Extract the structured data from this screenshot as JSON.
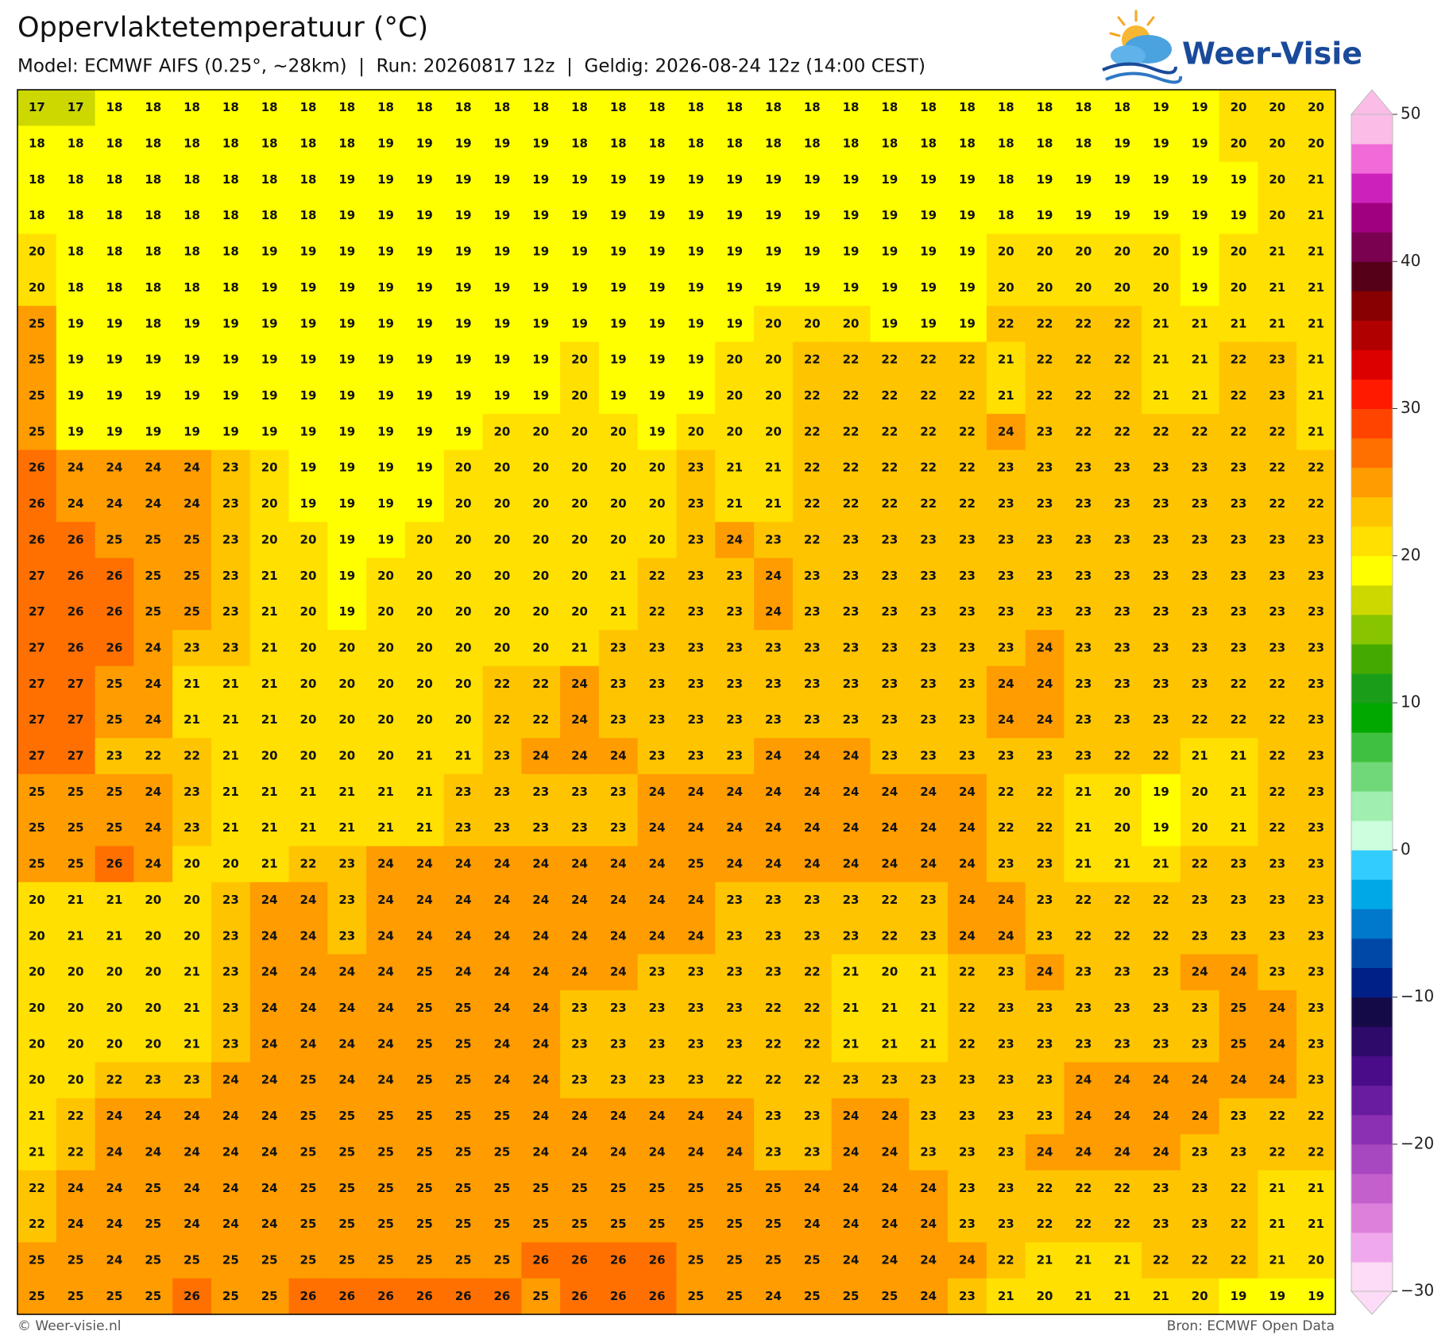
{
  "header": {
    "title": "Oppervlaktetemperatuur (°C)",
    "subtitle": "Model: ECMWF AIFS (0.25°, ~28km)  |  Run: 20260817 12z  |  Geldig: 2026-08-24 12z (14:00 CEST)"
  },
  "logo": "Weer-Visie",
  "grid": {
    "rows": [
      [
        17,
        17,
        18,
        18,
        18,
        18,
        18,
        18,
        18,
        18,
        18,
        18,
        18,
        18,
        18,
        18,
        18,
        18,
        18,
        18,
        18,
        18,
        18,
        18,
        18,
        18,
        18,
        18,
        18,
        19,
        19,
        20,
        20,
        20
      ],
      [
        18,
        18,
        18,
        18,
        18,
        18,
        18,
        18,
        18,
        19,
        19,
        19,
        19,
        19,
        18,
        18,
        18,
        18,
        18,
        18,
        18,
        18,
        18,
        18,
        18,
        18,
        18,
        18,
        19,
        19,
        19,
        20,
        20,
        20
      ],
      [
        18,
        18,
        18,
        18,
        18,
        18,
        18,
        18,
        19,
        19,
        19,
        19,
        19,
        19,
        19,
        19,
        19,
        19,
        19,
        19,
        19,
        19,
        19,
        19,
        19,
        18,
        19,
        19,
        19,
        19,
        19,
        19,
        20,
        21
      ],
      [
        18,
        18,
        18,
        18,
        18,
        18,
        18,
        18,
        19,
        19,
        19,
        19,
        19,
        19,
        19,
        19,
        19,
        19,
        19,
        19,
        19,
        19,
        19,
        19,
        19,
        18,
        19,
        19,
        19,
        19,
        19,
        19,
        20,
        21
      ],
      [
        20,
        18,
        18,
        18,
        18,
        18,
        19,
        19,
        19,
        19,
        19,
        19,
        19,
        19,
        19,
        19,
        19,
        19,
        19,
        19,
        19,
        19,
        19,
        19,
        19,
        20,
        20,
        20,
        20,
        20,
        19,
        20,
        21,
        21
      ],
      [
        20,
        18,
        18,
        18,
        18,
        18,
        19,
        19,
        19,
        19,
        19,
        19,
        19,
        19,
        19,
        19,
        19,
        19,
        19,
        19,
        19,
        19,
        19,
        19,
        19,
        20,
        20,
        20,
        20,
        20,
        19,
        20,
        21,
        21
      ],
      [
        25,
        19,
        19,
        18,
        19,
        19,
        19,
        19,
        19,
        19,
        19,
        19,
        19,
        19,
        19,
        19,
        19,
        19,
        19,
        20,
        20,
        20,
        19,
        19,
        19,
        22,
        22,
        22,
        22,
        21,
        21,
        21,
        21,
        21
      ],
      [
        25,
        19,
        19,
        19,
        19,
        19,
        19,
        19,
        19,
        19,
        19,
        19,
        19,
        19,
        20,
        19,
        19,
        19,
        20,
        20,
        22,
        22,
        22,
        22,
        22,
        21,
        22,
        22,
        22,
        21,
        21,
        22,
        23,
        21
      ],
      [
        25,
        19,
        19,
        19,
        19,
        19,
        19,
        19,
        19,
        19,
        19,
        19,
        19,
        19,
        20,
        19,
        19,
        19,
        20,
        20,
        22,
        22,
        22,
        22,
        22,
        21,
        22,
        22,
        22,
        21,
        21,
        22,
        23,
        21
      ],
      [
        25,
        19,
        19,
        19,
        19,
        19,
        19,
        19,
        19,
        19,
        19,
        19,
        20,
        20,
        20,
        20,
        19,
        20,
        20,
        20,
        22,
        22,
        22,
        22,
        22,
        24,
        23,
        22,
        22,
        22,
        22,
        22,
        22,
        21
      ],
      [
        26,
        24,
        24,
        24,
        24,
        23,
        20,
        19,
        19,
        19,
        19,
        20,
        20,
        20,
        20,
        20,
        20,
        23,
        21,
        21,
        22,
        22,
        22,
        22,
        22,
        23,
        23,
        23,
        23,
        23,
        23,
        23,
        22,
        22
      ],
      [
        26,
        24,
        24,
        24,
        24,
        23,
        20,
        19,
        19,
        19,
        19,
        20,
        20,
        20,
        20,
        20,
        20,
        23,
        21,
        21,
        22,
        22,
        22,
        22,
        22,
        23,
        23,
        23,
        23,
        23,
        23,
        23,
        22,
        22
      ],
      [
        26,
        26,
        25,
        25,
        25,
        23,
        20,
        20,
        19,
        19,
        20,
        20,
        20,
        20,
        20,
        20,
        20,
        23,
        24,
        23,
        22,
        23,
        23,
        23,
        23,
        23,
        23,
        23,
        23,
        23,
        23,
        23,
        23,
        23
      ],
      [
        27,
        26,
        26,
        25,
        25,
        23,
        21,
        20,
        19,
        20,
        20,
        20,
        20,
        20,
        20,
        21,
        22,
        23,
        23,
        24,
        23,
        23,
        23,
        23,
        23,
        23,
        23,
        23,
        23,
        23,
        23,
        23,
        23,
        23
      ],
      [
        27,
        26,
        26,
        25,
        25,
        23,
        21,
        20,
        19,
        20,
        20,
        20,
        20,
        20,
        20,
        21,
        22,
        23,
        23,
        24,
        23,
        23,
        23,
        23,
        23,
        23,
        23,
        23,
        23,
        23,
        23,
        23,
        23,
        23
      ],
      [
        27,
        26,
        26,
        24,
        23,
        23,
        21,
        20,
        20,
        20,
        20,
        20,
        20,
        20,
        21,
        23,
        23,
        23,
        23,
        23,
        23,
        23,
        23,
        23,
        23,
        23,
        24,
        23,
        23,
        23,
        23,
        23,
        23,
        23
      ],
      [
        27,
        27,
        25,
        24,
        21,
        21,
        21,
        20,
        20,
        20,
        20,
        20,
        22,
        22,
        24,
        23,
        23,
        23,
        23,
        23,
        23,
        23,
        23,
        23,
        23,
        24,
        24,
        23,
        23,
        23,
        23,
        22,
        22,
        23
      ],
      [
        27,
        27,
        25,
        24,
        21,
        21,
        21,
        20,
        20,
        20,
        20,
        20,
        22,
        22,
        24,
        23,
        23,
        23,
        23,
        23,
        23,
        23,
        23,
        23,
        23,
        24,
        24,
        23,
        23,
        23,
        22,
        22,
        22,
        23
      ],
      [
        27,
        27,
        23,
        22,
        22,
        21,
        20,
        20,
        20,
        20,
        21,
        21,
        23,
        24,
        24,
        24,
        23,
        23,
        23,
        24,
        24,
        24,
        23,
        23,
        23,
        23,
        23,
        23,
        22,
        22,
        21,
        21,
        22,
        23
      ],
      [
        25,
        25,
        25,
        24,
        23,
        21,
        21,
        21,
        21,
        21,
        21,
        23,
        23,
        23,
        23,
        23,
        24,
        24,
        24,
        24,
        24,
        24,
        24,
        24,
        24,
        22,
        22,
        21,
        20,
        19,
        20,
        21,
        22,
        23
      ],
      [
        25,
        25,
        25,
        24,
        23,
        21,
        21,
        21,
        21,
        21,
        21,
        23,
        23,
        23,
        23,
        23,
        24,
        24,
        24,
        24,
        24,
        24,
        24,
        24,
        24,
        22,
        22,
        21,
        20,
        19,
        20,
        21,
        22,
        23
      ],
      [
        25,
        25,
        26,
        24,
        20,
        20,
        21,
        22,
        23,
        24,
        24,
        24,
        24,
        24,
        24,
        24,
        24,
        25,
        24,
        24,
        24,
        24,
        24,
        24,
        24,
        23,
        23,
        21,
        21,
        21,
        22,
        23,
        23,
        23
      ],
      [
        20,
        21,
        21,
        20,
        20,
        23,
        24,
        24,
        23,
        24,
        24,
        24,
        24,
        24,
        24,
        24,
        24,
        24,
        23,
        23,
        23,
        23,
        22,
        23,
        24,
        24,
        23,
        22,
        22,
        22,
        23,
        23,
        23,
        23
      ],
      [
        20,
        21,
        21,
        20,
        20,
        23,
        24,
        24,
        23,
        24,
        24,
        24,
        24,
        24,
        24,
        24,
        24,
        24,
        23,
        23,
        23,
        23,
        22,
        23,
        24,
        24,
        23,
        22,
        22,
        22,
        23,
        23,
        23,
        23
      ],
      [
        20,
        20,
        20,
        20,
        21,
        23,
        24,
        24,
        24,
        24,
        25,
        24,
        24,
        24,
        24,
        24,
        23,
        23,
        23,
        23,
        22,
        21,
        20,
        21,
        22,
        23,
        24,
        23,
        23,
        23,
        24,
        24,
        23,
        23
      ],
      [
        20,
        20,
        20,
        20,
        21,
        23,
        24,
        24,
        24,
        24,
        25,
        25,
        24,
        24,
        23,
        23,
        23,
        23,
        23,
        22,
        22,
        21,
        21,
        21,
        22,
        23,
        23,
        23,
        23,
        23,
        23,
        25,
        24,
        23
      ],
      [
        20,
        20,
        20,
        20,
        21,
        23,
        24,
        24,
        24,
        24,
        25,
        25,
        24,
        24,
        23,
        23,
        23,
        23,
        23,
        22,
        22,
        21,
        21,
        21,
        22,
        23,
        23,
        23,
        23,
        23,
        23,
        25,
        24,
        23
      ],
      [
        20,
        20,
        22,
        23,
        23,
        24,
        24,
        25,
        24,
        24,
        25,
        25,
        24,
        24,
        23,
        23,
        23,
        23,
        22,
        22,
        22,
        23,
        23,
        23,
        23,
        23,
        23,
        24,
        24,
        24,
        24,
        24,
        24,
        23
      ],
      [
        21,
        22,
        24,
        24,
        24,
        24,
        24,
        25,
        25,
        25,
        25,
        25,
        25,
        24,
        24,
        24,
        24,
        24,
        24,
        23,
        23,
        24,
        24,
        23,
        23,
        23,
        23,
        24,
        24,
        24,
        24,
        23,
        22,
        22
      ],
      [
        21,
        22,
        24,
        24,
        24,
        24,
        24,
        25,
        25,
        25,
        25,
        25,
        25,
        24,
        24,
        24,
        24,
        24,
        24,
        23,
        23,
        24,
        24,
        23,
        23,
        23,
        24,
        24,
        24,
        24,
        23,
        23,
        22,
        22
      ],
      [
        22,
        24,
        24,
        25,
        24,
        24,
        24,
        25,
        25,
        25,
        25,
        25,
        25,
        25,
        25,
        25,
        25,
        25,
        25,
        25,
        24,
        24,
        24,
        24,
        23,
        23,
        22,
        22,
        22,
        23,
        23,
        22,
        21,
        21
      ],
      [
        22,
        24,
        24,
        25,
        24,
        24,
        24,
        25,
        25,
        25,
        25,
        25,
        25,
        25,
        25,
        25,
        25,
        25,
        25,
        25,
        24,
        24,
        24,
        24,
        23,
        23,
        22,
        22,
        22,
        23,
        23,
        22,
        21,
        21
      ],
      [
        25,
        25,
        24,
        25,
        25,
        25,
        25,
        25,
        25,
        25,
        25,
        25,
        25,
        26,
        26,
        26,
        26,
        25,
        25,
        25,
        25,
        24,
        24,
        24,
        24,
        22,
        21,
        21,
        21,
        22,
        22,
        22,
        21,
        20
      ],
      [
        25,
        25,
        25,
        25,
        26,
        25,
        25,
        26,
        26,
        26,
        26,
        26,
        26,
        25,
        26,
        26,
        26,
        25,
        25,
        24,
        25,
        25,
        25,
        24,
        23,
        21,
        20,
        21,
        21,
        21,
        20,
        19,
        19,
        19
      ]
    ]
  },
  "colorbar": {
    "lim": [
      -30,
      50
    ],
    "ticks": [
      50,
      40,
      30,
      20,
      10,
      0,
      {
        "value": -10,
        "label": "−10"
      },
      {
        "value": -20,
        "label": "−20"
      },
      {
        "value": -30,
        "label": "−30"
      }
    ],
    "colors": [
      "#fcdcf6",
      "#f0a8ec",
      "#dc80dc",
      "#c460cc",
      "#a848c0",
      "#8a30b0",
      "#6a1ca0",
      "#4a0c88",
      "#2e0a6a",
      "#150a48",
      "#002088",
      "#0048a8",
      "#0078cc",
      "#00a8e8",
      "#33ccff",
      "#ccffdd",
      "#a0eeb0",
      "#70d878",
      "#40c040",
      "#00a800",
      "#1a9e1a",
      "#44aa00",
      "#88c400",
      "#ccd800",
      "#ffff00",
      "#ffe000",
      "#ffc400",
      "#ff9c00",
      "#ff7000",
      "#ff4400",
      "#ff1a00",
      "#dd0000",
      "#b00000",
      "#880000",
      "#550018",
      "#7a0050",
      "#a00080",
      "#cc22bb",
      "#f06ad8",
      "#fbbde8"
    ]
  },
  "footer": {
    "left": "© Weer-visie.nl",
    "right": "Bron: ECMWF Open Data"
  }
}
